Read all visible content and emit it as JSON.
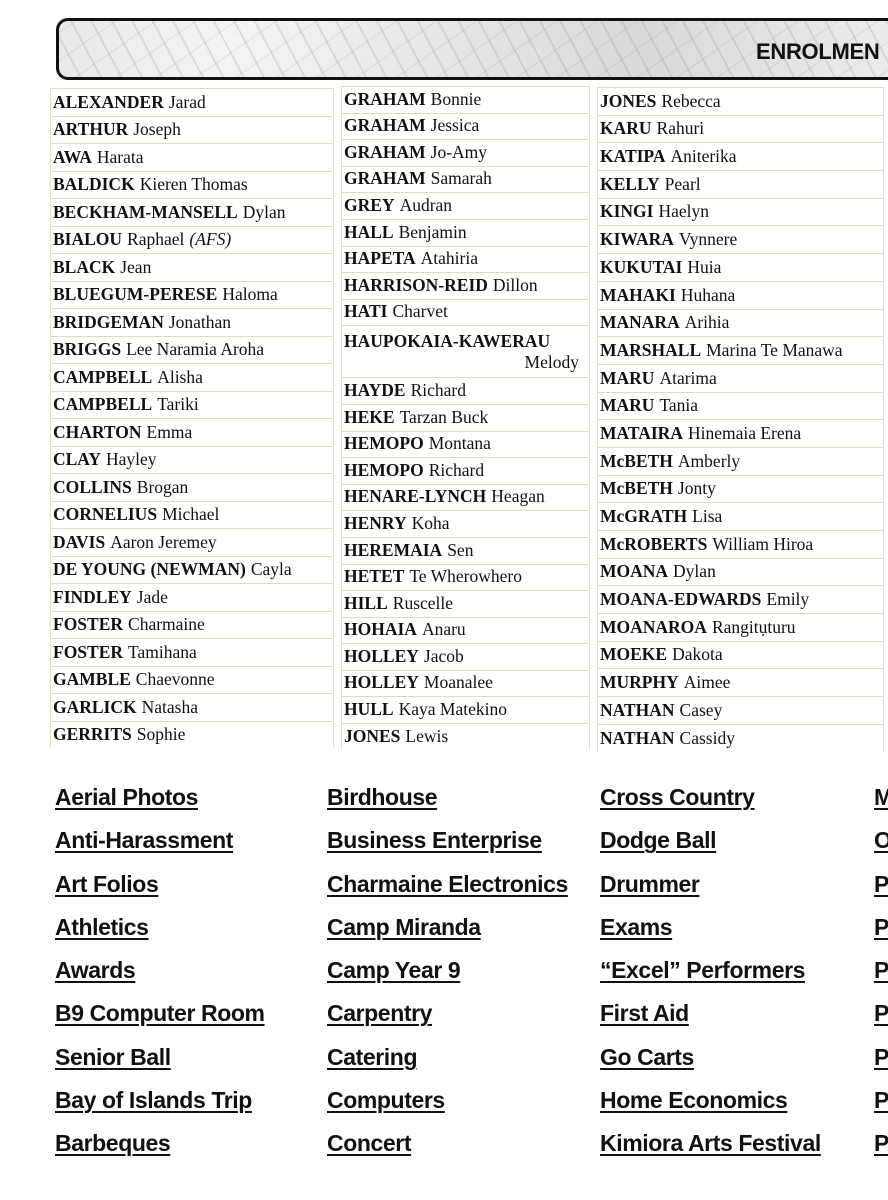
{
  "banner": {
    "title": "ENROLMEN"
  },
  "columns": [
    [
      {
        "s": "ALEXANDER",
        "g": "Jarad"
      },
      {
        "s": "ARTHUR",
        "g": "Joseph"
      },
      {
        "s": "AWA",
        "g": "Harata"
      },
      {
        "s": "BALDICK",
        "g": "Kieren Thomas"
      },
      {
        "s": "BECKHAM-MANSELL",
        "g": "Dylan"
      },
      {
        "s": "BIALOU",
        "g": "Raphael",
        "note": "(AFS)"
      },
      {
        "s": "BLACK",
        "g": "Jean"
      },
      {
        "s": "BLUEGUM-PERESE",
        "g": "Haloma"
      },
      {
        "s": "BRIDGEMAN",
        "g": "Jonathan"
      },
      {
        "s": "BRIGGS",
        "g": "Lee Naramia Aroha"
      },
      {
        "s": "CAMPBELL",
        "g": "Alisha"
      },
      {
        "s": "CAMPBELL",
        "g": "Tariki"
      },
      {
        "s": "CHARTON",
        "g": "Emma"
      },
      {
        "s": "CLAY",
        "g": "Hayley"
      },
      {
        "s": "COLLINS",
        "g": "Brogan"
      },
      {
        "s": "CORNELIUS",
        "g": "Michael"
      },
      {
        "s": "DAVIS",
        "g": "Aaron Jeremey"
      },
      {
        "s": "DE YOUNG (NEWMAN)",
        "g": "Cayla"
      },
      {
        "s": "FINDLEY",
        "g": "Jade"
      },
      {
        "s": "FOSTER",
        "g": "Charmaine"
      },
      {
        "s": "FOSTER",
        "g": "Tamihana"
      },
      {
        "s": "GAMBLE",
        "g": "Chaevonne"
      },
      {
        "s": "GARLICK",
        "g": "Natasha"
      },
      {
        "s": "GERRITS",
        "g": "Sophie"
      }
    ],
    [
      {
        "s": "GRAHAM",
        "g": "Bonnie"
      },
      {
        "s": "GRAHAM",
        "g": "Jessica"
      },
      {
        "s": "GRAHAM",
        "g": "Jo-Amy"
      },
      {
        "s": "GRAHAM",
        "g": "Samarah"
      },
      {
        "s": "GREY",
        "g": "Audran"
      },
      {
        "s": "HALL",
        "g": "Benjamin"
      },
      {
        "s": "HAPETA",
        "g": "Atahiria"
      },
      {
        "s": "HARRISON-REID",
        "g": "Dillon"
      },
      {
        "s": "HATI",
        "g": "Charvet"
      },
      {
        "s": "HAUPOKAIA-KAWERAU",
        "g": "Melody",
        "double": true
      },
      {
        "s": "HAYDE",
        "g": "Richard"
      },
      {
        "s": "HEKE",
        "g": "Tarzan Buck"
      },
      {
        "s": "HEMOPO",
        "g": "Montana"
      },
      {
        "s": "HEMOPO",
        "g": "Richard"
      },
      {
        "s": "HENARE-LYNCH",
        "g": "Heagan"
      },
      {
        "s": "HENRY",
        "g": "Koha"
      },
      {
        "s": "HEREMAIA",
        "g": "Sen"
      },
      {
        "s": "HETET",
        "g": "Te Wherowhero"
      },
      {
        "s": "HILL",
        "g": "Ruscelle"
      },
      {
        "s": "HOHAIA",
        "g": "Anaru"
      },
      {
        "s": "HOLLEY",
        "g": "Jacob"
      },
      {
        "s": "HOLLEY",
        "g": "Moanalee"
      },
      {
        "s": "HULL",
        "g": "Kaya Matekino"
      },
      {
        "s": "JONES",
        "g": "Lewis"
      }
    ],
    [
      {
        "s": "JONES",
        "g": "Rebecca"
      },
      {
        "s": "KARU",
        "g": "Rahuri"
      },
      {
        "s": "KATIPA",
        "g": "Aniterika"
      },
      {
        "s": "KELLY",
        "g": "Pearl"
      },
      {
        "s": "KINGI",
        "g": "Haelyn"
      },
      {
        "s": "KIWARA",
        "g": "Vynnere"
      },
      {
        "s": "KUKUTAI",
        "g": "Huia"
      },
      {
        "s": "MAHAKI",
        "g": "Huhana"
      },
      {
        "s": "MANARA",
        "g": "Arihia"
      },
      {
        "s": "MARSHALL",
        "g": "Marina Te Manawa"
      },
      {
        "s": "MARU",
        "g": "Atarima"
      },
      {
        "s": "MARU",
        "g": "Tania"
      },
      {
        "s": "MATAIRA",
        "g": "Hinemaia Erena"
      },
      {
        "s": "McBETH",
        "g": "Amberly"
      },
      {
        "s": "McBETH",
        "g": "Jonty"
      },
      {
        "s": "McGRATH",
        "g": "Lisa"
      },
      {
        "s": "McROBERTS",
        "g": "William Hiroa"
      },
      {
        "s": "MOANA",
        "g": "Dylan"
      },
      {
        "s": "MOANA-EDWARDS",
        "g": "Emily"
      },
      {
        "s": "MOANAROA",
        "g": "Rangitụturu"
      },
      {
        "s": "MOEKE",
        "g": "Dakota"
      },
      {
        "s": "MURPHY",
        "g": "Aimee"
      },
      {
        "s": "NATHAN",
        "g": "Casey"
      },
      {
        "s": "NATHAN",
        "g": "Cassidy"
      }
    ]
  ],
  "links": [
    [
      "Aerial Photos",
      "Anti-Harassment",
      "Art Folios",
      "Athletics",
      "Awards",
      "B9 Computer Room",
      "Senior Ball",
      "Bay of Islands Trip",
      "Barbeques"
    ],
    [
      "Birdhouse",
      "Business Enterprise",
      "Charmaine Electronics",
      "Camp Miranda",
      "Camp Year 9",
      "Carpentry",
      "Catering",
      "Computers",
      "Concert"
    ],
    [
      "Cross Country",
      "Dodge Ball",
      "Drummer",
      "Exams",
      "“Excel” Performers",
      "First Aid",
      "Go Carts",
      "Home Economics",
      "Kimiora Arts Festival"
    ],
    [
      "M",
      "O",
      "P",
      "P",
      "P",
      "P",
      "P",
      "P",
      "P"
    ]
  ]
}
